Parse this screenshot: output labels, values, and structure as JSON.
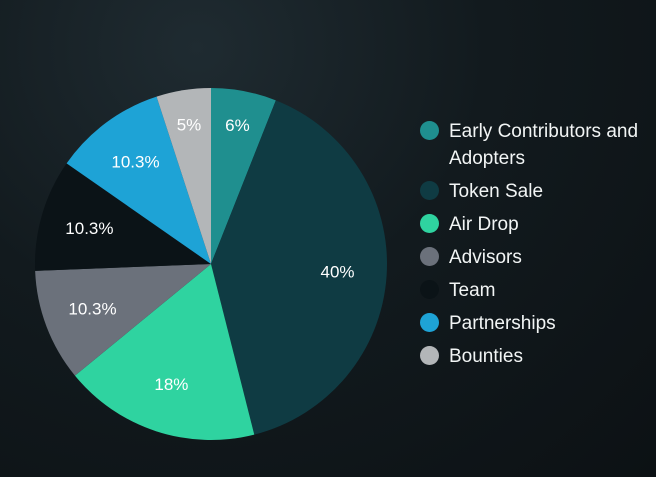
{
  "chart_data": {
    "type": "pie",
    "title": "",
    "legend_position": "right",
    "background_color": "#121a1e",
    "label_color": "#ffffff",
    "series": [
      {
        "name": "Early Contributors and Adopters",
        "value": 6,
        "label": "6%",
        "color": "#1f8f8f"
      },
      {
        "name": "Token Sale",
        "value": 40,
        "label": "40%",
        "color": "#0f3b43"
      },
      {
        "name": "Air Drop",
        "value": 18,
        "label": "18%",
        "color": "#2fd3a0"
      },
      {
        "name": "Advisors",
        "value": 10.3,
        "label": "10.3%",
        "color": "#6b717b"
      },
      {
        "name": "Team",
        "value": 10.3,
        "label": "10.3%",
        "color": "#0b1317"
      },
      {
        "name": "Partnerships",
        "value": 10.3,
        "label": "10.3%",
        "color": "#1ea3d6"
      },
      {
        "name": "Bounties",
        "value": 5,
        "label": "5%",
        "color": "#b3b6b8"
      }
    ]
  }
}
